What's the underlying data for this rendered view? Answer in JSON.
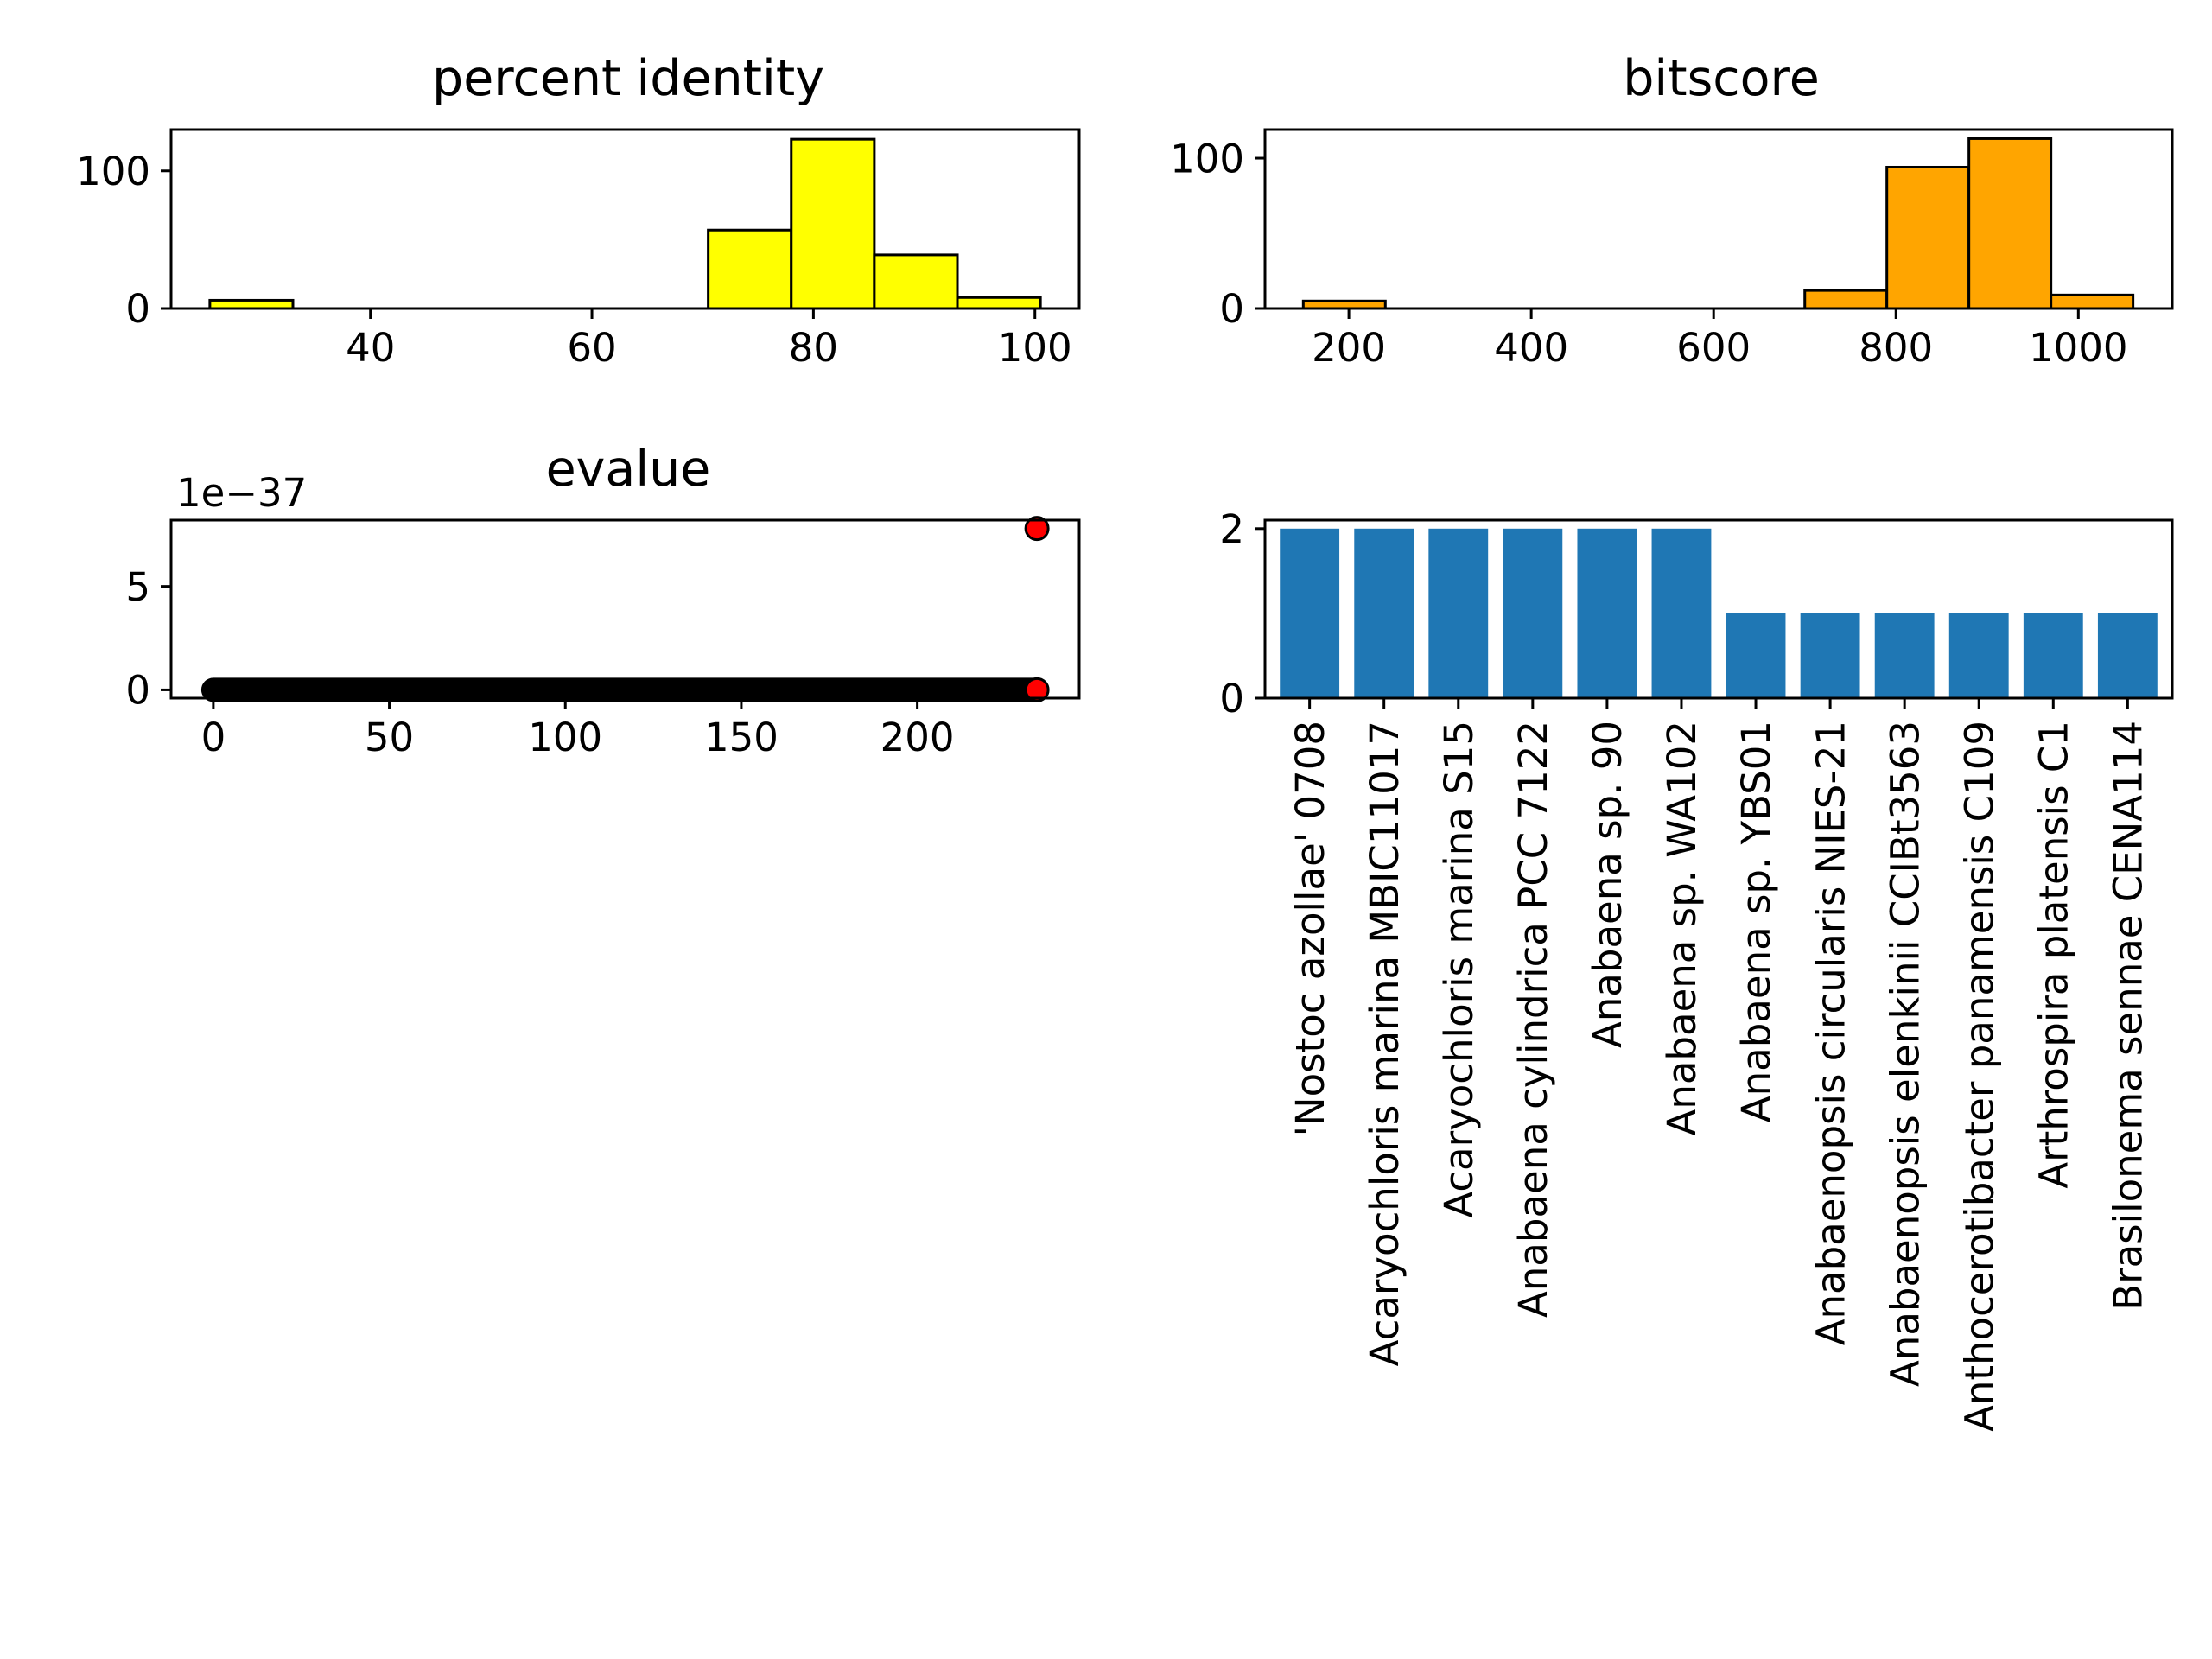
{
  "chart_data": [
    {
      "type": "bar",
      "subtype": "histogram",
      "title": "percent identity",
      "color": "#ffff00",
      "edge_color": "#000000",
      "bins": [
        {
          "x0": 25.5,
          "x1": 33.0,
          "count": 6
        },
        {
          "x0": 70.5,
          "x1": 78.0,
          "count": 57
        },
        {
          "x0": 78.0,
          "x1": 85.5,
          "count": 123
        },
        {
          "x0": 85.5,
          "x1": 93.0,
          "count": 39
        },
        {
          "x0": 93.0,
          "x1": 100.5,
          "count": 8
        }
      ],
      "xlim": [
        22,
        104
      ],
      "ylim": [
        0,
        130
      ],
      "xticks": [
        40,
        60,
        80,
        100
      ],
      "yticks": [
        0,
        100
      ],
      "grid": false
    },
    {
      "type": "bar",
      "subtype": "histogram",
      "title": "bitscore",
      "color": "#ffa500",
      "edge_color": "#000000",
      "bins": [
        {
          "x0": 150,
          "x1": 240,
          "count": 5
        },
        {
          "x0": 700,
          "x1": 790,
          "count": 12
        },
        {
          "x0": 790,
          "x1": 880,
          "count": 94
        },
        {
          "x0": 880,
          "x1": 970,
          "count": 113
        },
        {
          "x0": 970,
          "x1": 1060,
          "count": 9
        }
      ],
      "xlim": [
        108,
        1103
      ],
      "ylim": [
        0,
        119
      ],
      "xticks": [
        200,
        400,
        600,
        800,
        1000
      ],
      "yticks": [
        0,
        100
      ],
      "grid": false
    },
    {
      "type": "scatter",
      "title": "evalue",
      "offset_label": "1e−37",
      "line_color": "#000000",
      "highlight_color": "#ff0000",
      "x_range": [
        0,
        234
      ],
      "y_baseline": 0,
      "highlight_points": [
        {
          "x": 234,
          "y": 7.8
        },
        {
          "x": 234,
          "y": 0
        }
      ],
      "xlim": [
        -12,
        246
      ],
      "ylim": [
        -0.4,
        8.2
      ],
      "xticks": [
        0,
        50,
        100,
        150,
        200
      ],
      "yticks": [
        0,
        5
      ],
      "grid": false
    },
    {
      "type": "bar",
      "color": "#1f77b4",
      "categories": [
        "'Nostoc azollae' 0708",
        "Acaryochloris marina MBIC11017",
        "Acaryochloris marina S15",
        "Anabaena cylindrica PCC 7122",
        "Anabaena sp. 90",
        "Anabaena sp. WA102",
        "Anabaena sp. YBS01",
        "Anabaenopsis circularis NIES-21",
        "Anabaenopsis elenkinii CCIBt3563",
        "Anthocerotibacter panamensis C109",
        "Arthrospira platensis C1",
        "Brasilonema sennae CENA114"
      ],
      "values": [
        2,
        2,
        2,
        2,
        2,
        2,
        1,
        1,
        1,
        1,
        1,
        1
      ],
      "ylim": [
        0,
        2.1
      ],
      "yticks": [
        0,
        2
      ],
      "grid": false
    }
  ]
}
